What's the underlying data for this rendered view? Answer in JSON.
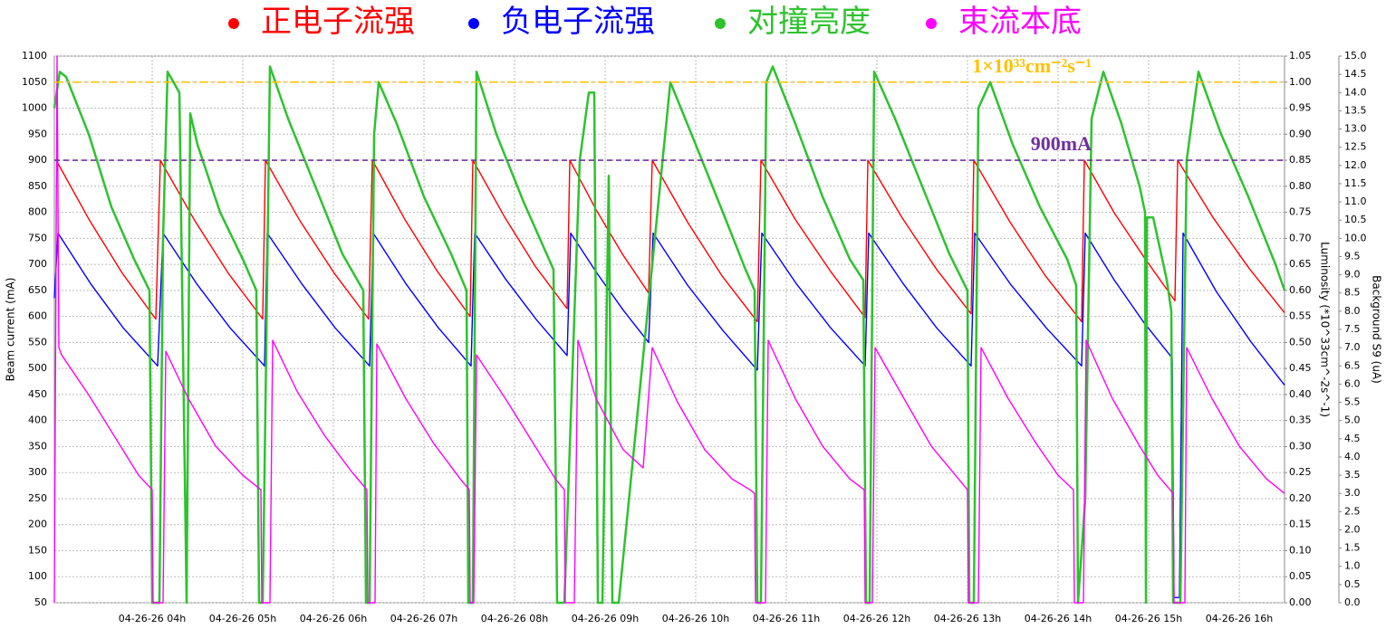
{
  "chart_data": {
    "type": "line",
    "y_label": "Beam current (mA)",
    "y2_label": "Luminosity (*10^33cm^-2s^-1)",
    "y3_label": "Background S9 (uA)",
    "grid": true,
    "xlim": [
      2.92,
      16.5
    ],
    "xticks": [
      {
        "value": 4,
        "label": "04-26-26 04h"
      },
      {
        "value": 5,
        "label": "04-26-26 05h"
      },
      {
        "value": 6,
        "label": "04-26-26 06h"
      },
      {
        "value": 7,
        "label": "04-26-26 07h"
      },
      {
        "value": 8,
        "label": "04-26-26 08h"
      },
      {
        "value": 9,
        "label": "04-26-26 09h"
      },
      {
        "value": 10,
        "label": "04-26-26 10h"
      },
      {
        "value": 11,
        "label": "04-26-26 11h"
      },
      {
        "value": 12,
        "label": "04-26-26 12h"
      },
      {
        "value": 13,
        "label": "04-26-26 13h"
      },
      {
        "value": 14,
        "label": "04-26-26 14h"
      },
      {
        "value": 15,
        "label": "04-26-26 15h"
      },
      {
        "value": 16,
        "label": "04-26-26 16h"
      }
    ],
    "ylim": [
      50,
      1100
    ],
    "yticks": [
      50,
      100,
      150,
      200,
      250,
      300,
      350,
      400,
      450,
      500,
      550,
      600,
      650,
      700,
      750,
      800,
      850,
      900,
      950,
      1000,
      1050,
      1100
    ],
    "y2lim": [
      0,
      1.05
    ],
    "y2ticks": [
      {
        "value": 0,
        "label": "0.00"
      },
      {
        "value": 0.05,
        "label": "0.05"
      },
      {
        "value": 0.1,
        "label": "0.10"
      },
      {
        "value": 0.15,
        "label": "0.15"
      },
      {
        "value": 0.2,
        "label": "0.20"
      },
      {
        "value": 0.25,
        "label": "0.25"
      },
      {
        "value": 0.3,
        "label": "0.30"
      },
      {
        "value": 0.35,
        "label": "0.35"
      },
      {
        "value": 0.4,
        "label": "0.40"
      },
      {
        "value": 0.45,
        "label": "0.45"
      },
      {
        "value": 0.5,
        "label": "0.50"
      },
      {
        "value": 0.55,
        "label": "0.55"
      },
      {
        "value": 0.6,
        "label": "0.60"
      },
      {
        "value": 0.65,
        "label": "0.65"
      },
      {
        "value": 0.7,
        "label": "0.70"
      },
      {
        "value": 0.75,
        "label": "0.75"
      },
      {
        "value": 0.8,
        "label": "0.80"
      },
      {
        "value": 0.85,
        "label": "0.85"
      },
      {
        "value": 0.9,
        "label": "0.90"
      },
      {
        "value": 0.95,
        "label": "0.95"
      },
      {
        "value": 1,
        "label": "1.00"
      },
      {
        "value": 1.05,
        "label": "1.05"
      }
    ],
    "y3lim": [
      0,
      15
    ],
    "y3ticks": [
      {
        "value": 0,
        "label": "0.0"
      },
      {
        "value": 0.5,
        "label": "0.5"
      },
      {
        "value": 1,
        "label": "1.0"
      },
      {
        "value": 1.5,
        "label": "1.5"
      },
      {
        "value": 2,
        "label": "2.0"
      },
      {
        "value": 2.5,
        "label": "2.5"
      },
      {
        "value": 3,
        "label": "3.0"
      },
      {
        "value": 3.5,
        "label": "3.5"
      },
      {
        "value": 4,
        "label": "4.0"
      },
      {
        "value": 4.5,
        "label": "4.5"
      },
      {
        "value": 5,
        "label": "5.0"
      },
      {
        "value": 5.5,
        "label": "5.5"
      },
      {
        "value": 6,
        "label": "6.0"
      },
      {
        "value": 6.5,
        "label": "6.5"
      },
      {
        "value": 7,
        "label": "7.0"
      },
      {
        "value": 7.5,
        "label": "7.5"
      },
      {
        "value": 8,
        "label": "8.0"
      },
      {
        "value": 8.5,
        "label": "8.5"
      },
      {
        "value": 9,
        "label": "9.0"
      },
      {
        "value": 9.5,
        "label": "9.5"
      },
      {
        "value": 10,
        "label": "10.0"
      },
      {
        "value": 10.5,
        "label": "10.5"
      },
      {
        "value": 11,
        "label": "11.0"
      },
      {
        "value": 11.5,
        "label": "11.5"
      },
      {
        "value": 12,
        "label": "12.0"
      },
      {
        "value": 12.5,
        "label": "12.5"
      },
      {
        "value": 13,
        "label": "13.0"
      },
      {
        "value": 13.5,
        "label": "13.5"
      },
      {
        "value": 14,
        "label": "14.0"
      },
      {
        "value": 14.5,
        "label": "14.5"
      },
      {
        "value": 15,
        "label": "15.0"
      }
    ],
    "annotations": [
      {
        "text": "1×10³³cm⁻²s⁻¹",
        "value": 1050,
        "color": "#ffc000"
      },
      {
        "text": "900mA",
        "value": 900,
        "color": "#7030a0"
      }
    ],
    "series": [
      {
        "name": "正电子流强",
        "color": "#ff0000",
        "axis": "y",
        "x": [
          2.94,
          3.31,
          3.67,
          4.04,
          4.09,
          4.47,
          4.84,
          5.22,
          5.25,
          5.63,
          6.01,
          6.39,
          6.43,
          6.79,
          7.15,
          7.51,
          7.54,
          7.89,
          8.23,
          8.58,
          8.61,
          8.9,
          9.19,
          9.48,
          9.52,
          9.91,
          10.29,
          10.68,
          10.72,
          11.1,
          11.49,
          11.87,
          11.9,
          12.28,
          12.66,
          13.04,
          13.07,
          13.47,
          13.86,
          14.26,
          14.29,
          14.62,
          14.96,
          15.29,
          15.32,
          15.71,
          16.11,
          16.5
        ],
        "values": [
          900,
          784,
          683,
          595,
          900,
          784,
          683,
          595,
          900,
          784,
          683,
          595,
          900,
          786,
          686,
          600,
          900,
          791,
          696,
          615,
          900,
          805,
          720,
          645,
          900,
          781,
          678,
          590,
          900,
          786,
          686,
          598,
          900,
          789,
          690,
          605,
          900,
          781,
          678,
          590,
          900,
          799,
          711,
          630,
          900,
          790,
          692,
          607
        ]
      },
      {
        "name": "负电子流强",
        "color": "#0000ff",
        "axis": "y",
        "x": [
          2.92,
          2.96,
          3.32,
          3.68,
          4.06,
          4.12,
          4.49,
          4.86,
          5.24,
          5.27,
          5.65,
          6.02,
          6.4,
          6.44,
          6.8,
          7.16,
          7.52,
          7.56,
          7.9,
          8.24,
          8.58,
          8.62,
          8.91,
          9.2,
          9.48,
          9.53,
          9.91,
          10.3,
          10.68,
          10.73,
          11.11,
          11.49,
          11.87,
          11.91,
          12.29,
          12.66,
          13.04,
          13.08,
          13.47,
          13.87,
          14.26,
          14.3,
          14.62,
          14.94,
          15.26,
          15.28,
          15.34,
          15.38,
          15.75,
          16.13,
          16.5
        ],
        "values": [
          635,
          760,
          663,
          578,
          505,
          760,
          663,
          578,
          505,
          760,
          663,
          578,
          505,
          760,
          663,
          578,
          505,
          760,
          672,
          594,
          525,
          760,
          683,
          612,
          550,
          760,
          660,
          573,
          497,
          760,
          663,
          578,
          505,
          760,
          663,
          578,
          505,
          760,
          663,
          578,
          505,
          760,
          670,
          590,
          520,
          60,
          60,
          760,
          647,
          551,
          468
        ]
      },
      {
        "name": "对撞亮度",
        "color": "#2ec22e",
        "axis": "y2",
        "x": [
          2.92,
          2.98,
          3.05,
          3.3,
          3.55,
          3.8,
          3.97,
          4.0,
          4.08,
          4.12,
          4.17,
          4.3,
          4.38,
          4.42,
          4.5,
          4.75,
          5.0,
          5.15,
          5.18,
          5.22,
          5.26,
          5.3,
          5.5,
          5.8,
          6.1,
          6.33,
          6.36,
          6.4,
          6.45,
          6.5,
          6.7,
          7.0,
          7.3,
          7.47,
          7.49,
          7.54,
          7.58,
          7.8,
          8.1,
          8.43,
          8.47,
          8.55,
          8.72,
          8.82,
          8.88,
          8.92,
          8.97,
          9.04,
          9.08,
          9.15,
          9.72,
          10.0,
          10.3,
          10.55,
          10.65,
          10.68,
          10.72,
          10.78,
          10.85,
          11.1,
          11.4,
          11.7,
          11.85,
          11.88,
          11.92,
          11.97,
          12.2,
          12.5,
          12.8,
          13.0,
          13.02,
          13.07,
          13.12,
          13.25,
          13.5,
          13.8,
          14.1,
          14.2,
          14.22,
          14.3,
          14.37,
          14.5,
          14.7,
          14.9,
          14.96,
          14.97,
          14.98,
          15.05,
          15.2,
          15.25,
          15.27,
          15.35,
          15.42,
          15.55,
          15.8,
          16.1,
          16.4,
          16.5
        ],
        "values": [
          0.95,
          1.02,
          1.01,
          0.9,
          0.76,
          0.66,
          0.6,
          0.0,
          0.0,
          0.7,
          1.02,
          0.98,
          0.0,
          0.94,
          0.88,
          0.75,
          0.66,
          0.6,
          0.0,
          0.0,
          0.5,
          1.03,
          0.93,
          0.8,
          0.67,
          0.6,
          0.0,
          0.0,
          0.9,
          1.0,
          0.92,
          0.78,
          0.67,
          0.6,
          0.0,
          0.0,
          1.02,
          0.9,
          0.77,
          0.64,
          0.0,
          0.0,
          0.85,
          0.98,
          0.98,
          0.0,
          0.0,
          0.82,
          0.0,
          0.0,
          1.0,
          0.88,
          0.75,
          0.64,
          0.6,
          0.0,
          0.0,
          1.0,
          1.03,
          0.92,
          0.78,
          0.66,
          0.62,
          0.0,
          0.0,
          1.02,
          0.93,
          0.8,
          0.67,
          0.6,
          0.0,
          0.0,
          0.95,
          1.0,
          0.88,
          0.76,
          0.66,
          0.61,
          0.0,
          0.2,
          0.93,
          1.02,
          0.92,
          0.8,
          0.75,
          0.0,
          0.74,
          0.74,
          0.62,
          0.56,
          0.0,
          0.0,
          0.85,
          1.02,
          0.9,
          0.78,
          0.65,
          0.6
        ]
      },
      {
        "name": "束流本底",
        "color": "#ff00ff",
        "axis": "y3",
        "x": [
          2.92,
          2.95,
          2.97,
          3.0,
          3.3,
          3.6,
          3.85,
          4.0,
          4.01,
          4.12,
          4.15,
          4.4,
          4.7,
          5.0,
          5.2,
          5.21,
          5.3,
          5.33,
          5.6,
          5.9,
          6.2,
          6.37,
          6.38,
          6.46,
          6.48,
          6.8,
          7.1,
          7.4,
          7.5,
          7.51,
          7.55,
          7.58,
          7.9,
          8.2,
          8.45,
          8.55,
          8.56,
          8.66,
          8.7,
          8.9,
          9.2,
          9.42,
          9.52,
          9.8,
          10.1,
          10.4,
          10.6,
          10.65,
          10.66,
          10.77,
          10.8,
          11.1,
          11.4,
          11.7,
          11.86,
          11.87,
          11.95,
          11.98,
          12.3,
          12.6,
          12.9,
          13.0,
          13.01,
          13.12,
          13.15,
          13.45,
          13.75,
          14.0,
          14.17,
          14.18,
          14.28,
          14.31,
          14.6,
          14.9,
          15.1,
          15.27,
          15.28,
          15.4,
          15.42,
          15.7,
          16.0,
          16.3,
          16.5
        ],
        "values": [
          0,
          15,
          7.0,
          6.8,
          5.7,
          4.5,
          3.5,
          3.1,
          0,
          0,
          6.9,
          5.6,
          4.3,
          3.5,
          3.1,
          0,
          0,
          7.2,
          5.8,
          4.6,
          3.6,
          3.1,
          0,
          0,
          7.1,
          5.6,
          4.4,
          3.4,
          3.1,
          0,
          0,
          6.8,
          5.6,
          4.4,
          3.4,
          3.1,
          0,
          0,
          7.2,
          5.6,
          4.2,
          3.7,
          7.0,
          5.5,
          4.2,
          3.4,
          3.1,
          3.0,
          0,
          0,
          7.2,
          5.6,
          4.3,
          3.4,
          3.1,
          0,
          0,
          7.0,
          5.6,
          4.3,
          3.4,
          3.1,
          0,
          0,
          7.0,
          5.6,
          4.4,
          3.5,
          3.1,
          0,
          0,
          7.2,
          5.6,
          4.3,
          3.5,
          3.0,
          0,
          0,
          7.0,
          5.6,
          4.3,
          3.4,
          3.0
        ]
      }
    ]
  }
}
